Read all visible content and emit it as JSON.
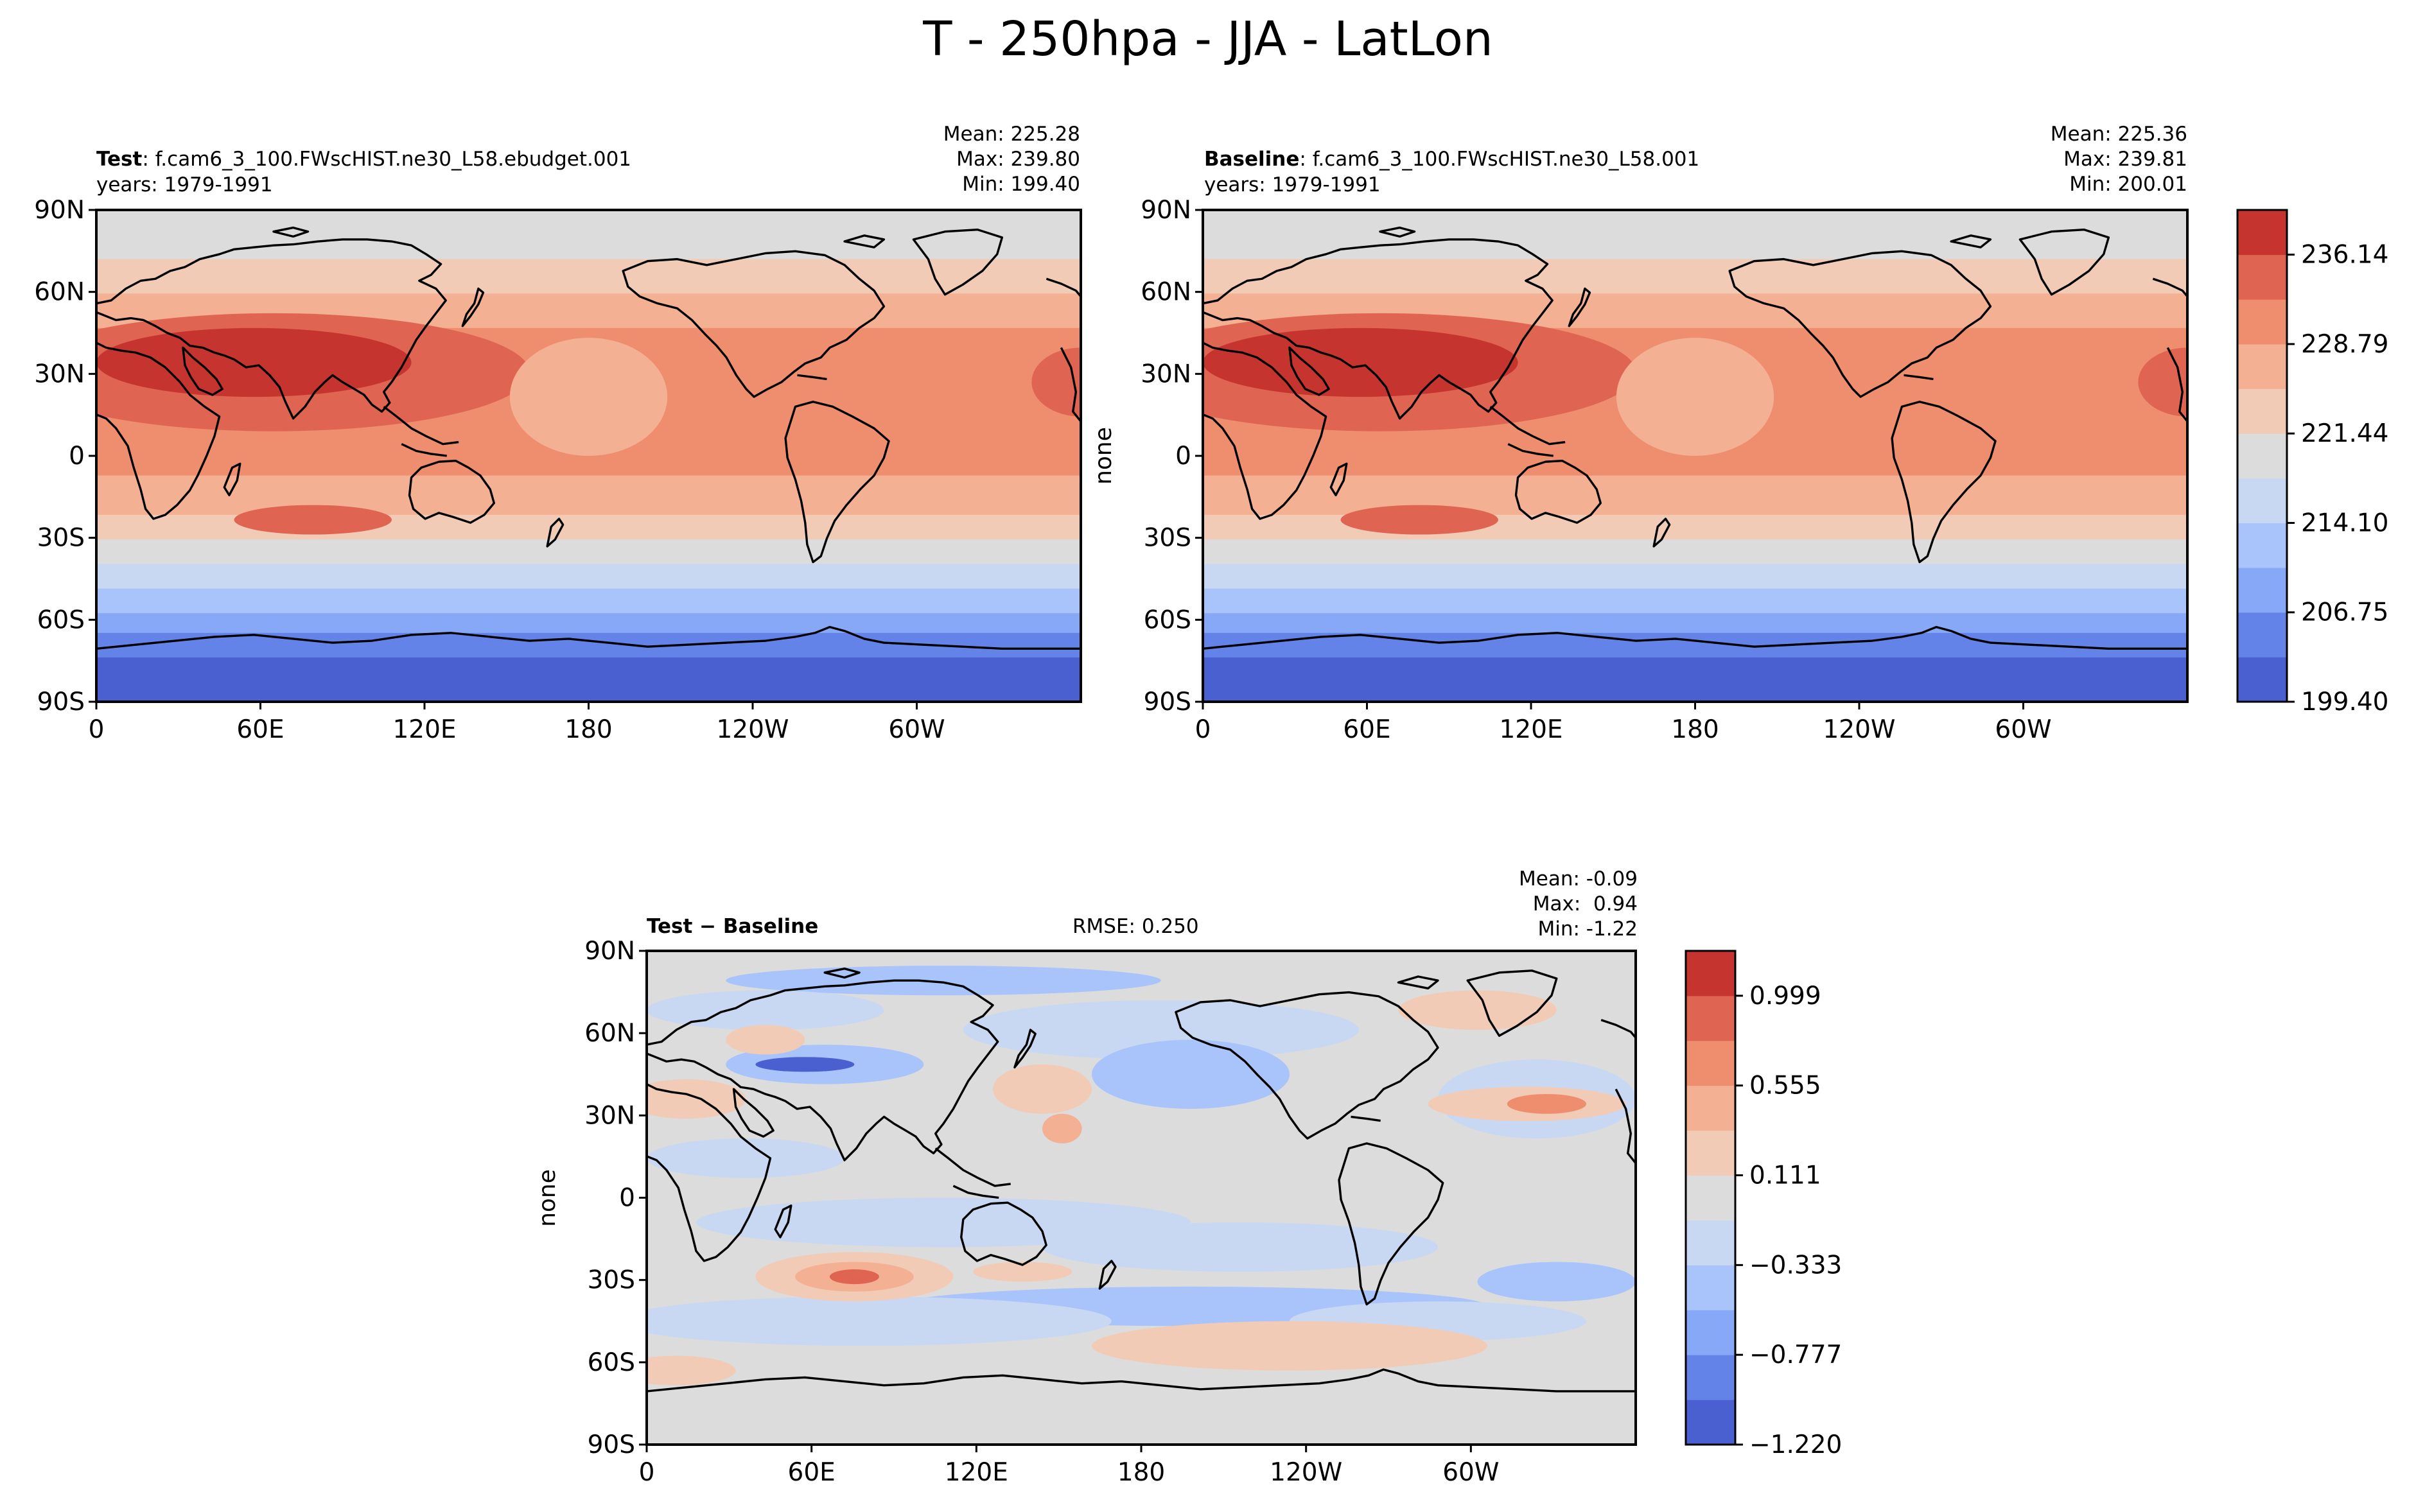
{
  "figure": {
    "suptitle": "T - 250hpa - JJA - LatLon"
  },
  "ticks": {
    "lat_labels": [
      "90N",
      "60N",
      "30N",
      "0",
      "30S",
      "60S",
      "90S"
    ],
    "lon_labels": [
      "0",
      "60E",
      "120E",
      "180",
      "120W",
      "60W"
    ],
    "lat_values": [
      90,
      60,
      30,
      0,
      -30,
      -60,
      -90
    ],
    "lon_values": [
      0,
      60,
      120,
      180,
      240,
      300
    ]
  },
  "panels": {
    "test": {
      "label_bold": "Test",
      "label_sep": ":",
      "case_name": "f.cam6_3_100.FWscHIST.ne30_L58.ebudget.001",
      "years": "years: 1979-1991",
      "stats": {
        "mean": "Mean: 225.28",
        "max": "Max: 239.80",
        "min": "Min: 199.40"
      }
    },
    "baseline": {
      "label_bold": "Baseline",
      "label_sep": ":",
      "case_name": "f.cam6_3_100.FWscHIST.ne30_L58.001",
      "years": "years: 1979-1991",
      "ylabel": "none",
      "stats": {
        "mean": "Mean: 225.36",
        "max": "Max: 239.81",
        "min": "Min: 200.01"
      }
    },
    "diff": {
      "label": "Test − Baseline",
      "rmse": "RMSE: 0.250",
      "ylabel": "none",
      "stats": {
        "mean": "Mean: -0.09",
        "max": "Max:  0.94",
        "min": "Min: -1.22"
      }
    }
  },
  "colorbars": {
    "main": {
      "tick_labels": [
        "236.14",
        "228.79",
        "221.44",
        "214.10",
        "206.75",
        "199.40"
      ],
      "colors": [
        "#4a5fd0",
        "#6483e8",
        "#87a8f7",
        "#a9c4fb",
        "#c8d8f2",
        "#dcdcdc",
        "#f1cbb6",
        "#f4b093",
        "#ee8e6e",
        "#df6452",
        "#c63430"
      ]
    },
    "diff": {
      "tick_labels": [
        "0.999",
        "0.555",
        "0.111",
        "−0.333",
        "−0.777",
        "−1.220"
      ],
      "colors": [
        "#4a5fd0",
        "#6483e8",
        "#87a8f7",
        "#a9c4fb",
        "#c8d8f2",
        "#dcdcdc",
        "#f1cbb6",
        "#f4b093",
        "#ee8e6e",
        "#df6452",
        "#c63430"
      ]
    }
  },
  "chart_data": [
    {
      "type": "heatmap",
      "title": "Test: f.cam6_3_100.FWscHIST.ne30_L58.ebudget.001",
      "variable": "T",
      "level": "250hpa",
      "season": "JJA",
      "units_range": [
        199.4,
        239.8
      ],
      "zonal_profile": {
        "lat": [
          90,
          80,
          70,
          60,
          50,
          40,
          30,
          20,
          10,
          0,
          -10,
          -20,
          -30,
          -40,
          -50,
          -60,
          -70,
          -80,
          -90
        ],
        "value": [
          220.0,
          221.0,
          222.0,
          223.0,
          226.0,
          229.5,
          231.0,
          230.0,
          229.0,
          229.0,
          229.0,
          228.0,
          226.0,
          221.0,
          217.0,
          211.0,
          205.0,
          201.0,
          199.4
        ]
      },
      "stats": {
        "mean": 225.28,
        "max": 239.8,
        "min": 199.4
      }
    },
    {
      "type": "heatmap",
      "title": "Baseline: f.cam6_3_100.FWscHIST.ne30_L58.001",
      "variable": "T",
      "level": "250hpa",
      "season": "JJA",
      "units_range": [
        200.01,
        239.81
      ],
      "zonal_profile": {
        "lat": [
          90,
          80,
          70,
          60,
          50,
          40,
          30,
          20,
          10,
          0,
          -10,
          -20,
          -30,
          -40,
          -50,
          -60,
          -70,
          -80,
          -90
        ],
        "value": [
          220.0,
          221.5,
          222.5,
          223.5,
          226.5,
          229.8,
          231.2,
          230.2,
          229.2,
          229.1,
          229.1,
          228.2,
          226.2,
          221.2,
          217.3,
          211.3,
          205.3,
          201.3,
          200.0
        ]
      },
      "stats": {
        "mean": 225.36,
        "max": 239.81,
        "min": 200.01
      }
    },
    {
      "type": "heatmap",
      "title": "Test - Baseline",
      "units_range": [
        -1.22,
        0.94
      ],
      "rmse": 0.25,
      "stats": {
        "mean": -0.09,
        "max": 0.94,
        "min": -1.22
      }
    }
  ]
}
